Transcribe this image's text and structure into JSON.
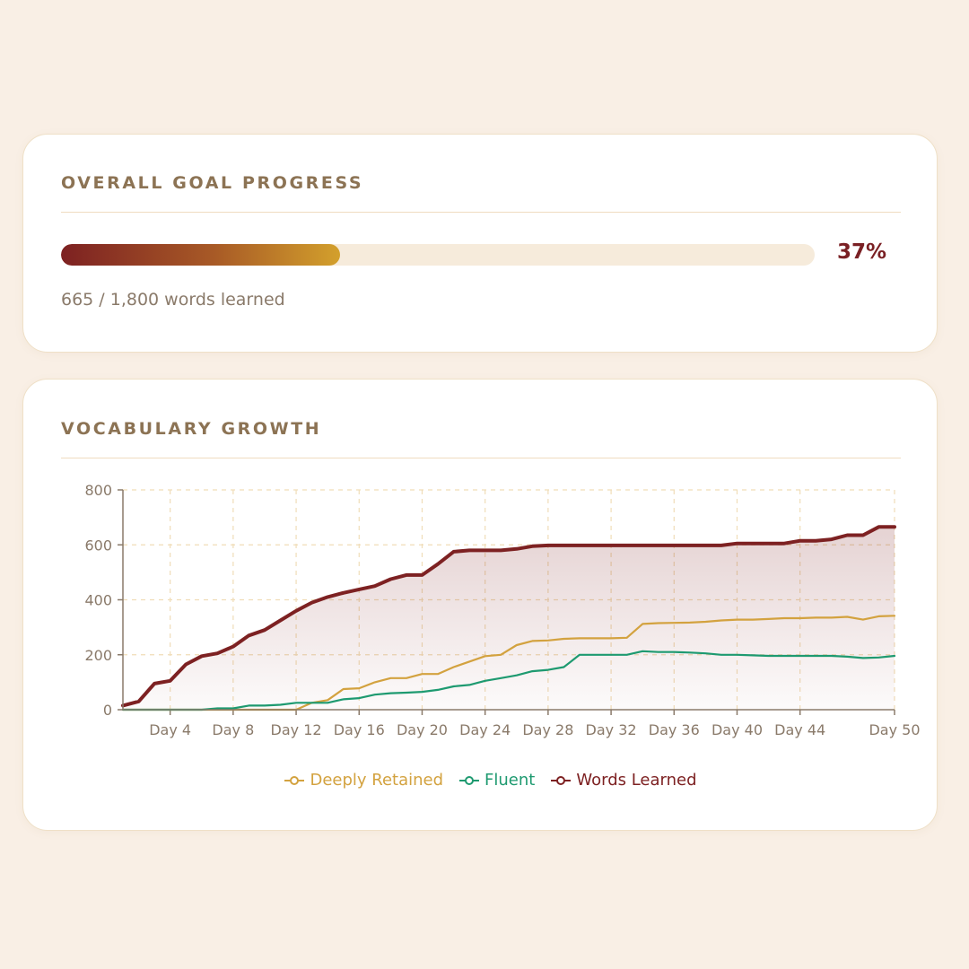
{
  "goal": {
    "title": "OVERALL GOAL PROGRESS",
    "percent_label": "37%",
    "progress_fraction": 0.37,
    "words_label": "665 / 1,800 words learned"
  },
  "growth": {
    "title": "VOCABULARY GROWTH"
  },
  "colors": {
    "words_learned": "#7d2122",
    "fluent": "#1e9a70",
    "deeply_retained": "#d3a23f",
    "grid": "#f0ddb8",
    "axis": "#8a7a6a"
  },
  "chart_data": {
    "type": "line",
    "xlabel": "",
    "ylabel": "",
    "ylim": [
      0,
      800
    ],
    "yticks": [
      0,
      200,
      400,
      600,
      800
    ],
    "x_range": [
      1,
      50
    ],
    "tick_labels": [
      "Day 4",
      "Day 8",
      "Day 12",
      "Day 16",
      "Day 20",
      "Day 24",
      "Day 28",
      "Day 32",
      "Day 36",
      "Day 40",
      "Day 44",
      "Day 50"
    ],
    "grid": true,
    "legend_position": "bottom",
    "series": [
      {
        "name": "Deeply Retained",
        "color": "#d3a23f",
        "x": [
          1,
          2,
          3,
          4,
          5,
          6,
          7,
          8,
          9,
          10,
          11,
          12,
          13,
          14,
          15,
          16,
          17,
          18,
          19,
          20,
          21,
          22,
          23,
          24,
          25,
          26,
          27,
          28,
          29,
          30,
          31,
          32,
          33,
          34,
          35,
          36,
          37,
          38,
          39,
          40,
          41,
          42,
          43,
          44,
          45,
          46,
          47,
          48,
          49,
          50
        ],
        "values": [
          0,
          0,
          0,
          0,
          0,
          0,
          0,
          0,
          0,
          0,
          0,
          0,
          25,
          35,
          75,
          78,
          100,
          115,
          115,
          130,
          130,
          155,
          175,
          195,
          200,
          235,
          250,
          252,
          258,
          260,
          260,
          260,
          262,
          312,
          315,
          316,
          317,
          320,
          325,
          328,
          328,
          330,
          333,
          333,
          335,
          335,
          338,
          328,
          340,
          342
        ]
      },
      {
        "name": "Fluent",
        "color": "#1e9a70",
        "x": [
          1,
          2,
          3,
          4,
          5,
          6,
          7,
          8,
          9,
          10,
          11,
          12,
          13,
          14,
          15,
          16,
          17,
          18,
          19,
          20,
          21,
          22,
          23,
          24,
          25,
          26,
          27,
          28,
          29,
          30,
          31,
          32,
          33,
          34,
          35,
          36,
          37,
          38,
          39,
          40,
          41,
          42,
          43,
          44,
          45,
          46,
          47,
          48,
          49,
          50
        ],
        "values": [
          0,
          0,
          0,
          0,
          0,
          0,
          5,
          5,
          15,
          15,
          18,
          25,
          25,
          25,
          38,
          42,
          55,
          60,
          62,
          65,
          72,
          85,
          90,
          105,
          115,
          125,
          140,
          145,
          155,
          200,
          200,
          200,
          200,
          213,
          210,
          210,
          208,
          205,
          200,
          200,
          198,
          196,
          196,
          196,
          196,
          196,
          193,
          188,
          190,
          196
        ]
      },
      {
        "name": "Words Learned",
        "color": "#7d2122",
        "x": [
          1,
          2,
          3,
          4,
          5,
          6,
          7,
          8,
          9,
          10,
          11,
          12,
          13,
          14,
          15,
          16,
          17,
          18,
          19,
          20,
          21,
          22,
          23,
          24,
          25,
          26,
          27,
          28,
          29,
          30,
          31,
          32,
          33,
          34,
          35,
          36,
          37,
          38,
          39,
          40,
          41,
          42,
          43,
          44,
          45,
          46,
          47,
          48,
          49,
          50
        ],
        "values": [
          15,
          30,
          95,
          105,
          165,
          195,
          205,
          230,
          270,
          290,
          325,
          360,
          390,
          410,
          425,
          438,
          450,
          475,
          490,
          490,
          530,
          575,
          580,
          580,
          580,
          585,
          595,
          598,
          598,
          598,
          598,
          598,
          598,
          598,
          598,
          598,
          598,
          598,
          598,
          605,
          605,
          605,
          605,
          615,
          615,
          620,
          635,
          635,
          665,
          665
        ]
      }
    ]
  }
}
